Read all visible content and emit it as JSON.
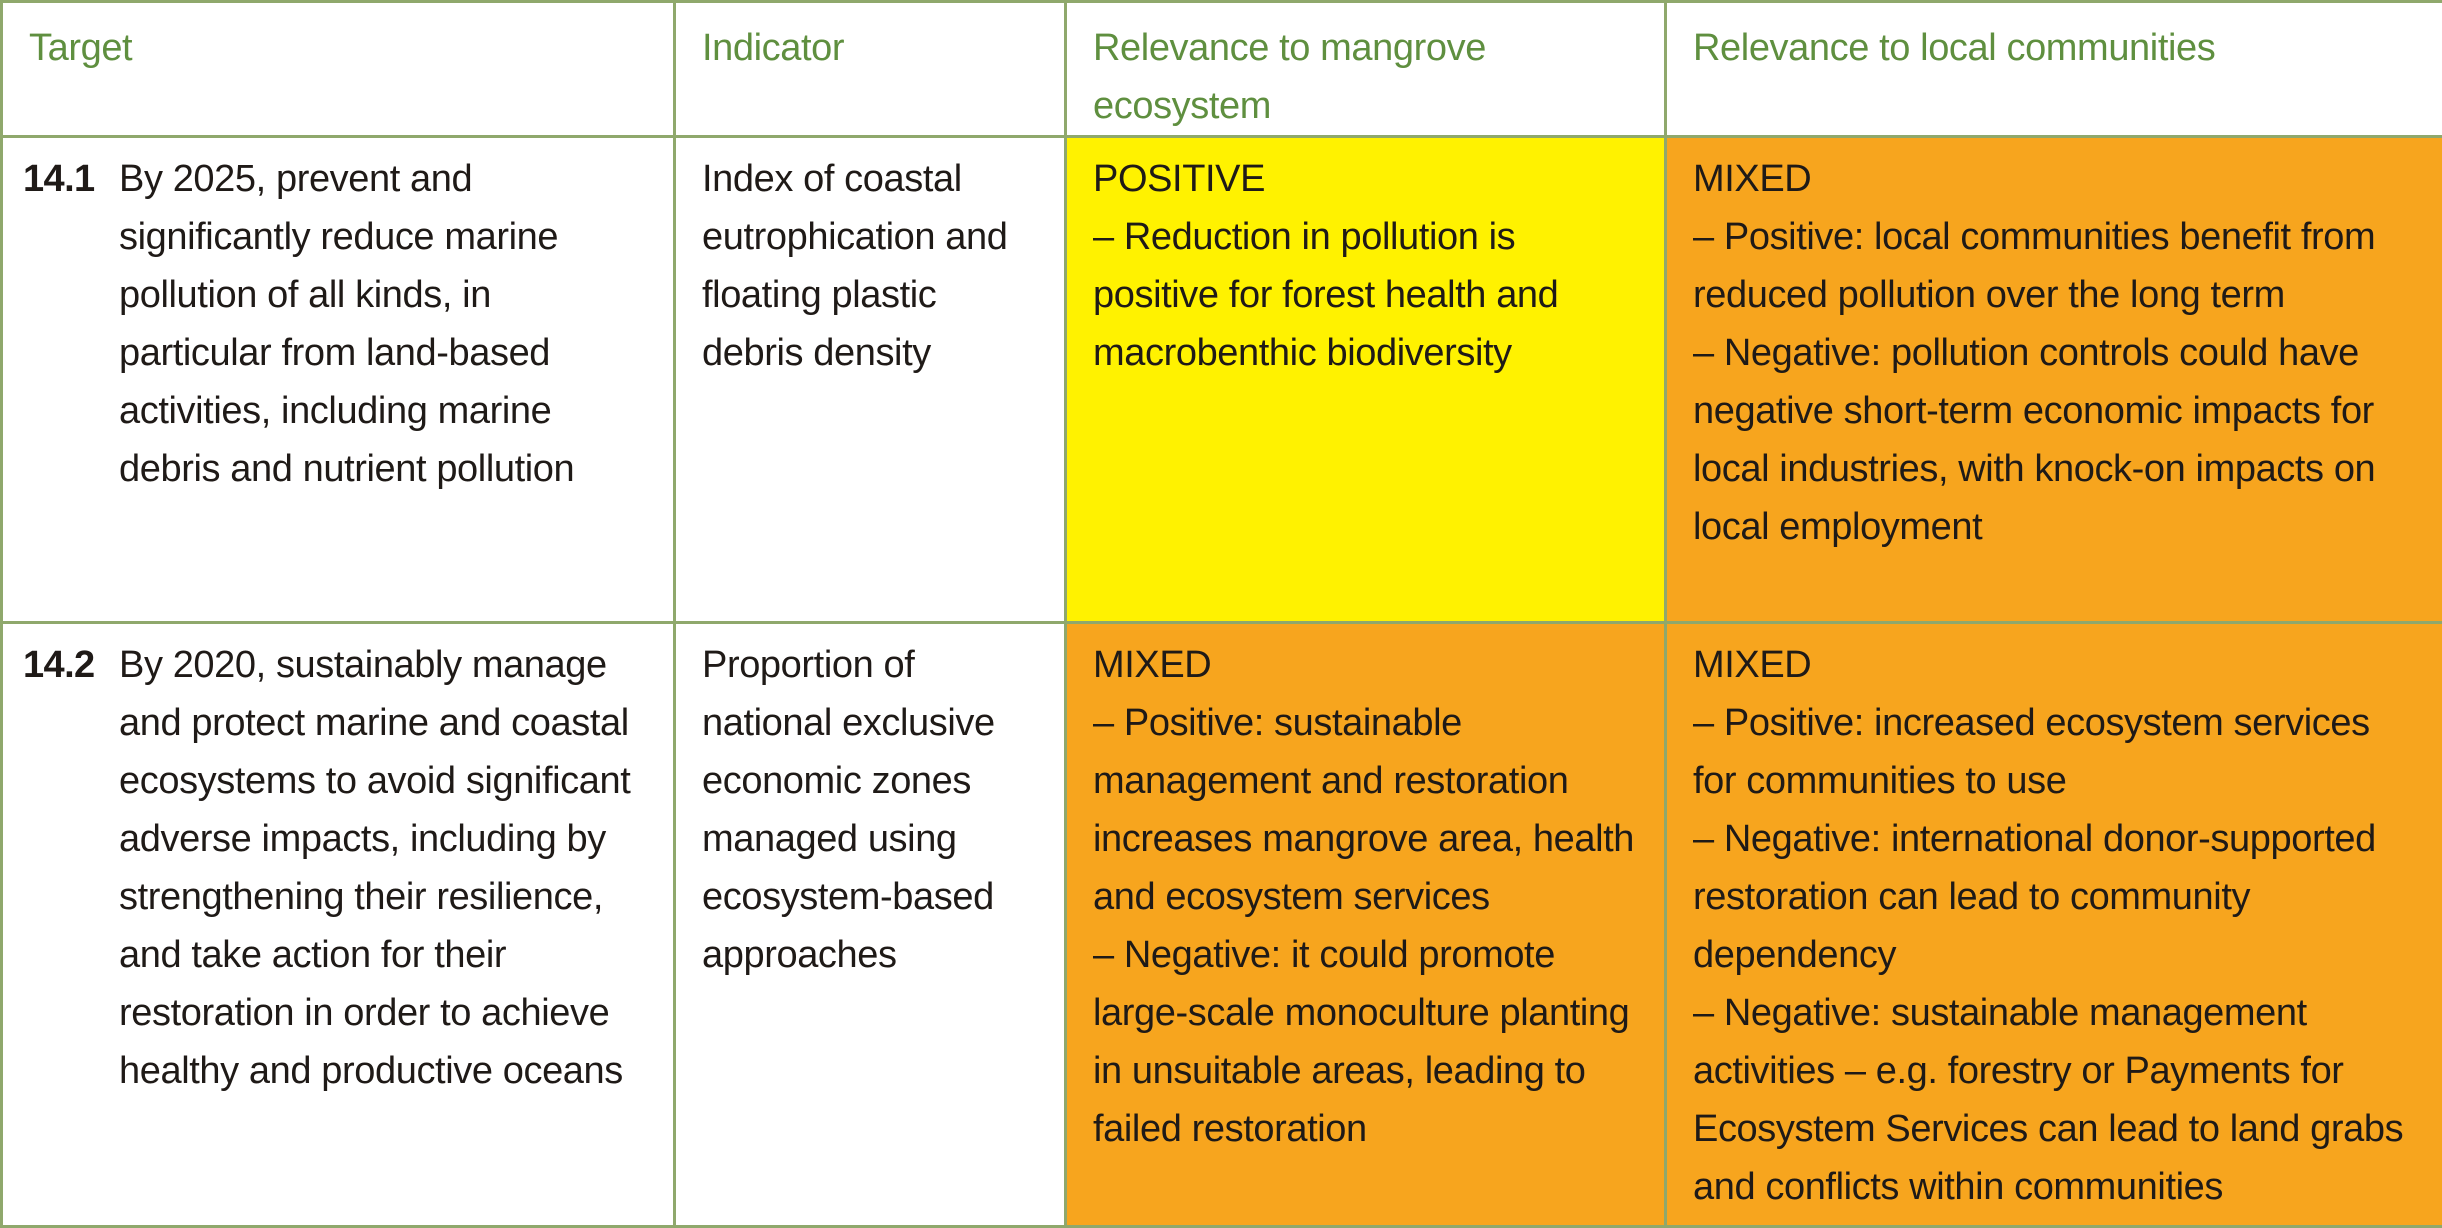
{
  "colors": {
    "header_text": "#5f8f3f",
    "border": "#8fa86c",
    "positive_fill": "#fff200",
    "mixed_fill": "#f7a51e",
    "body_text": "#1f1a17"
  },
  "table": {
    "headers": {
      "target": "Target",
      "indicator": "Indicator",
      "mangrove": "Relevance to mangrove ecosystem",
      "community": "Relevance to local communities"
    },
    "rows": [
      {
        "code": "14.1",
        "target": "By 2025, prevent and significantly reduce marine pollution of all kinds, in particular from land-based activities, including marine debris and nutrient pollution",
        "indicator": "Index of coastal eutrophication and floating plastic debris density",
        "mangrove": {
          "rating": "POSITIVE",
          "points": [
            "– Reduction in pollution is positive for forest health and macrobenthic biodiversity"
          ]
        },
        "community": {
          "rating": "MIXED",
          "points": [
            "– Positive: local communities benefit from reduced pollution over the long term",
            "– Negative: pollution controls could have negative short-term economic impacts for local industries, with knock-on impacts on local employment"
          ]
        }
      },
      {
        "code": "14.2",
        "target": "By 2020, sustainably manage and protect marine and coastal ecosystems to avoid significant adverse impacts, including by strengthening their resilience, and take action for their restoration in order to achieve healthy and productive oceans",
        "indicator": "Proportion of national exclusive economic zones managed using ecosystem-based approaches",
        "mangrove": {
          "rating": "MIXED",
          "points": [
            "– Positive: sustainable management and restoration increases mangrove area, health and ecosystem services",
            "– Negative: it could promote large-scale monoculture planting in unsuitable areas, leading to failed restoration"
          ]
        },
        "community": {
          "rating": "MIXED",
          "points": [
            "– Positive: increased ecosystem services for communities to use",
            "– Negative: international donor-supported restoration can lead to community dependency",
            "– Negative: sustainable management activities – e.g. forestry or Payments for Ecosystem Services can lead to land grabs and conflicts within communities"
          ]
        }
      }
    ]
  }
}
